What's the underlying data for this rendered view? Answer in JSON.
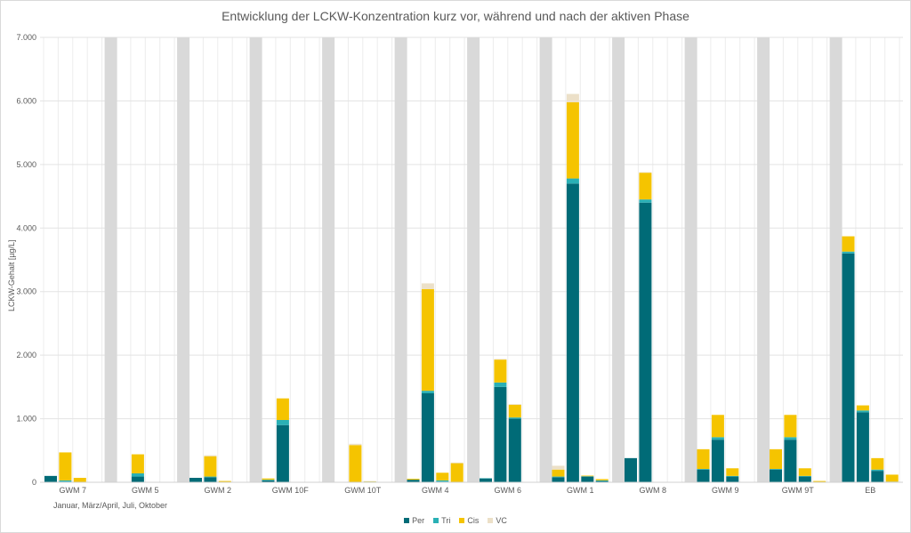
{
  "chart_data": {
    "type": "bar",
    "stacked": true,
    "title": "Entwicklung der LCKW-Konzentration kurz vor, während und nach der aktiven Phase",
    "ylabel": "LCKW-Gehalt [µg/L]",
    "xlabel": "Januar, März/April, Juli, Oktober",
    "ylim": [
      0,
      7000
    ],
    "yticks": [
      "0",
      "1.000",
      "2.000",
      "3.000",
      "4.000",
      "5.000",
      "6.000",
      "7.000"
    ],
    "grid": true,
    "legend_position": "bottom",
    "periods": [
      "Januar",
      "März/April",
      "Juli",
      "Oktober"
    ],
    "categories": [
      "GWM 7",
      "GWM 5",
      "GWM 2",
      "GWM 10F",
      "GWM 10T",
      "GWM 4",
      "GWM 6",
      "GWM 1",
      "GWM 8",
      "GWM 9",
      "GWM 9T",
      "EB"
    ],
    "series": [
      {
        "name": "Per",
        "color": "#006b77",
        "values": [
          [
            100,
            10,
            0,
            0
          ],
          [
            0,
            90,
            0,
            0
          ],
          [
            70,
            80,
            0,
            0
          ],
          [
            30,
            900,
            0,
            0
          ],
          [
            0,
            0,
            0,
            0
          ],
          [
            40,
            1400,
            10,
            0
          ],
          [
            60,
            1500,
            1000,
            0
          ],
          [
            80,
            4700,
            90,
            20
          ],
          [
            380,
            4400,
            0,
            0
          ],
          [
            200,
            670,
            90,
            0
          ],
          [
            200,
            670,
            90,
            0
          ],
          [
            3600,
            1100,
            180,
            5
          ]
        ]
      },
      {
        "name": "Tri",
        "color": "#2ab0b5",
        "values": [
          [
            0,
            20,
            0,
            0
          ],
          [
            0,
            50,
            0,
            0
          ],
          [
            0,
            10,
            0,
            0
          ],
          [
            10,
            80,
            0,
            0
          ],
          [
            0,
            5,
            10,
            0
          ],
          [
            0,
            40,
            20,
            0
          ],
          [
            5,
            70,
            20,
            0
          ],
          [
            10,
            80,
            5,
            10
          ],
          [
            0,
            50,
            0,
            0
          ],
          [
            10,
            40,
            10,
            0
          ],
          [
            10,
            40,
            10,
            0
          ],
          [
            30,
            30,
            20,
            5
          ]
        ]
      },
      {
        "name": "Cis",
        "color": "#f5c400",
        "values": [
          [
            0,
            440,
            70,
            0
          ],
          [
            0,
            300,
            0,
            0
          ],
          [
            0,
            320,
            20,
            5
          ],
          [
            20,
            340,
            5,
            0
          ],
          [
            0,
            580,
            5,
            0
          ],
          [
            15,
            1600,
            120,
            300
          ],
          [
            0,
            360,
            200,
            0
          ],
          [
            110,
            1200,
            10,
            20
          ],
          [
            0,
            420,
            5,
            0
          ],
          [
            310,
            350,
            120,
            0
          ],
          [
            310,
            350,
            120,
            20
          ],
          [
            240,
            80,
            180,
            110
          ]
        ]
      },
      {
        "name": "VC",
        "color": "#ece0c8",
        "values": [
          [
            0,
            0,
            0,
            0
          ],
          [
            0,
            0,
            0,
            0
          ],
          [
            0,
            15,
            0,
            0
          ],
          [
            0,
            0,
            0,
            0
          ],
          [
            0,
            20,
            5,
            0
          ],
          [
            0,
            90,
            0,
            10
          ],
          [
            0,
            10,
            10,
            0
          ],
          [
            60,
            130,
            0,
            0
          ],
          [
            0,
            10,
            0,
            0
          ],
          [
            0,
            0,
            0,
            0
          ],
          [
            0,
            0,
            0,
            0
          ],
          [
            0,
            0,
            0,
            0
          ]
        ]
      }
    ],
    "separator_color": "#d9d9d9"
  }
}
